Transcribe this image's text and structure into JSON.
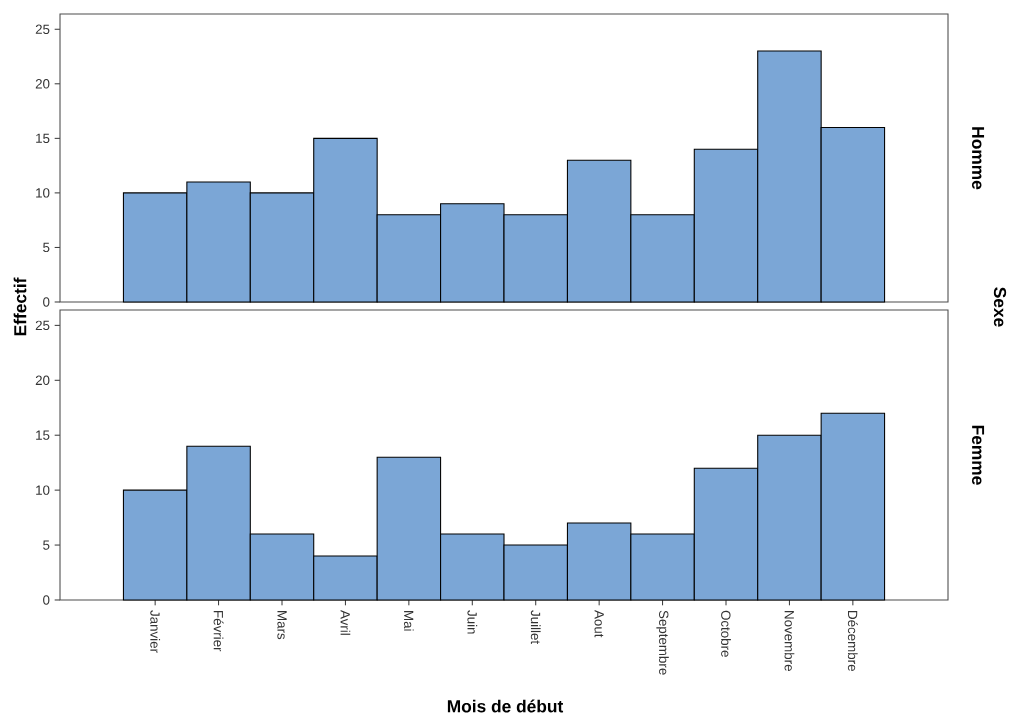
{
  "chart_data": [
    {
      "type": "bar",
      "annotations": [
        "Homme"
      ],
      "ylabel": "Effectif",
      "y2label": "Sexe",
      "categories": [
        null,
        null,
        null,
        null,
        null,
        null,
        null,
        null,
        null,
        null,
        null,
        null
      ],
      "values": [
        10,
        11,
        10,
        15,
        8,
        9,
        8,
        13,
        8,
        14,
        23,
        16
      ],
      "color": "#7ba6d6",
      "ylim": [
        0,
        26.4
      ],
      "yticks": [
        0,
        5,
        10,
        15,
        20,
        25
      ],
      "tick_labels": "y"
    },
    {
      "type": "bar",
      "annotations": [
        "Femme"
      ],
      "xlabel": "Mois de début",
      "categories": [
        "Janvier",
        "Février",
        "Mars",
        "Avril",
        "Mai",
        "Juin",
        "Juillet",
        "Aout",
        "Septembre",
        "Octobre",
        "Novembre",
        "Décembre"
      ],
      "values": [
        10,
        14,
        6,
        4,
        13,
        6,
        5,
        7,
        6,
        12,
        15,
        17
      ],
      "color": "#7ba6d6",
      "ylim": [
        0,
        26.4
      ],
      "yticks": [
        0,
        5,
        10,
        15,
        20,
        25
      ]
    }
  ]
}
